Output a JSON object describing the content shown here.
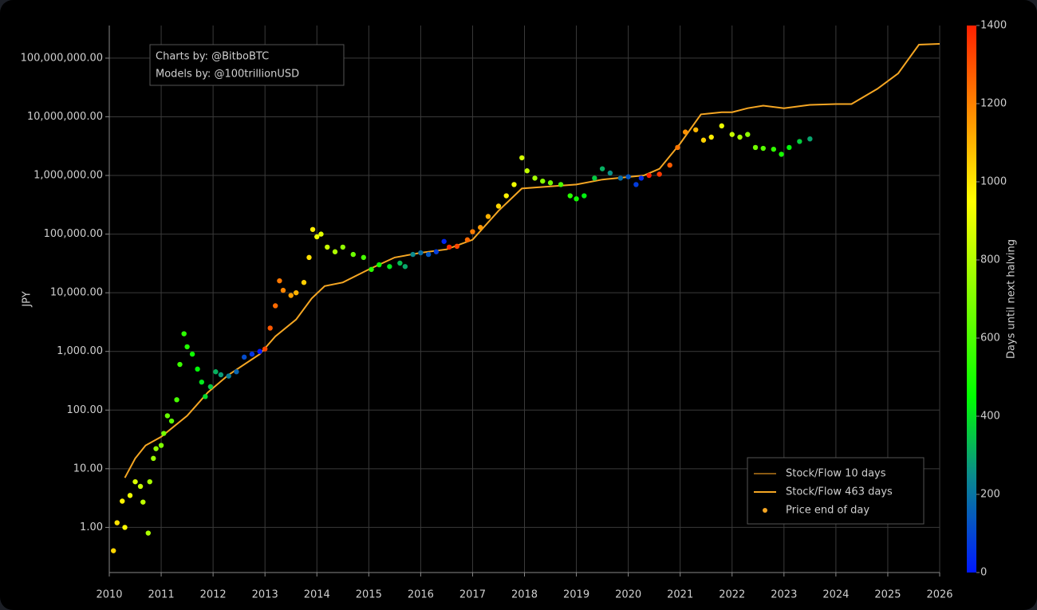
{
  "chart_data": {
    "type": "scatter",
    "y_label": "JPY",
    "annotations": [
      "Charts by: @BitboBTC",
      "Models by: @100trillionUSD"
    ],
    "log_y": true,
    "grid": true,
    "legend_position": "lower right",
    "xlim": [
      2010,
      2026
    ],
    "xticks": [
      2010,
      2011,
      2012,
      2013,
      2014,
      2015,
      2016,
      2017,
      2018,
      2019,
      2020,
      2021,
      2022,
      2023,
      2024,
      2025,
      2026
    ],
    "ylim": [
      0.17,
      360000000
    ],
    "yticks": [
      {
        "value": 1,
        "label": "1.00"
      },
      {
        "value": 10,
        "label": "10.00"
      },
      {
        "value": 100,
        "label": "100.00"
      },
      {
        "value": 1000,
        "label": "1,000.00"
      },
      {
        "value": 10000,
        "label": "10,000.00"
      },
      {
        "value": 100000,
        "label": "100,000.00"
      },
      {
        "value": 1000000,
        "label": "1,000,000.00"
      },
      {
        "value": 10000000,
        "label": "10,000,000.00"
      },
      {
        "value": 100000000,
        "label": "100,000,000.00"
      }
    ],
    "colorbar": {
      "label": "Days until next halving",
      "lim": [
        0,
        1400
      ],
      "ticks": [
        0,
        200,
        400,
        600,
        800,
        1000,
        1200,
        1400
      ],
      "colorscale": [
        [
          0,
          "#0018ff"
        ],
        [
          250,
          "#0a8c8c"
        ],
        [
          450,
          "#00ff00"
        ],
        [
          950,
          "#ffff00"
        ],
        [
          1150,
          "#ff9a00"
        ],
        [
          1400,
          "#ff2000"
        ]
      ]
    },
    "series": [
      {
        "name": "Stock/Flow 10 days",
        "type": "line",
        "color": "#8a5a12"
      },
      {
        "name": "Stock/Flow 463 days",
        "type": "line",
        "color": "#f5a623",
        "x": [
          2010.3,
          2010.5,
          2010.7,
          2011.0,
          2011.5,
          2011.9,
          2012.3,
          2012.9,
          2013.2,
          2013.6,
          2013.9,
          2014.15,
          2014.5,
          2015.0,
          2015.5,
          2016.0,
          2016.5,
          2017.0,
          2017.5,
          2017.95,
          2018.5,
          2019.0,
          2019.5,
          2020.3,
          2020.6,
          2021.0,
          2021.4,
          2021.8,
          2022.0,
          2022.3,
          2022.6,
          2023.0,
          2023.5,
          2024.0,
          2024.3,
          2024.8,
          2025.2,
          2025.6,
          2026.0
        ],
        "values": [
          7,
          15,
          25,
          35,
          80,
          200,
          400,
          900,
          1800,
          3500,
          8000,
          13000,
          15000,
          25000,
          40000,
          48000,
          55000,
          80000,
          250000,
          600000,
          650000,
          700000,
          850000,
          1000000,
          1300000,
          3500000,
          11000000,
          12000000,
          12000000,
          14000000,
          15500000,
          14000000,
          16000000,
          16500000,
          16500000,
          30000000,
          55000000,
          170000000,
          175000000
        ]
      },
      {
        "name": "Price end of day",
        "type": "scatter",
        "color": "#f5a623",
        "x": [
          2010.08,
          2010.15,
          2010.25,
          2010.3,
          2010.4,
          2010.5,
          2010.6,
          2010.65,
          2010.75,
          2010.78,
          2010.85,
          2010.9,
          2011.0,
          2011.05,
          2011.12,
          2011.2,
          2011.3,
          2011.36,
          2011.44,
          2011.5,
          2011.6,
          2011.7,
          2011.78,
          2011.85,
          2011.95,
          2012.05,
          2012.15,
          2012.3,
          2012.45,
          2012.6,
          2012.75,
          2012.9,
          2013.0,
          2013.1,
          2013.2,
          2013.28,
          2013.35,
          2013.5,
          2013.6,
          2013.75,
          2013.85,
          2013.92,
          2014.0,
          2014.08,
          2014.2,
          2014.35,
          2014.5,
          2014.7,
          2014.9,
          2015.05,
          2015.2,
          2015.4,
          2015.6,
          2015.7,
          2015.85,
          2016.0,
          2016.15,
          2016.3,
          2016.45,
          2016.55,
          2016.7,
          2016.9,
          2017.0,
          2017.15,
          2017.3,
          2017.5,
          2017.65,
          2017.8,
          2017.95,
          2018.05,
          2018.2,
          2018.35,
          2018.5,
          2018.7,
          2018.88,
          2019.0,
          2019.15,
          2019.35,
          2019.5,
          2019.65,
          2019.85,
          2020.0,
          2020.15,
          2020.25,
          2020.4,
          2020.6,
          2020.8,
          2020.95,
          2021.1,
          2021.3,
          2021.45,
          2021.6,
          2021.8,
          2022.0,
          2022.15,
          2022.3,
          2022.45,
          2022.6,
          2022.8,
          2022.95,
          2023.1,
          2023.3,
          2023.5
        ],
        "values": [
          0.4,
          1.2,
          2.8,
          1.0,
          3.5,
          6,
          5,
          2.7,
          0.8,
          6,
          15,
          22,
          25,
          40,
          80,
          65,
          150,
          600,
          2000,
          1200,
          900,
          500,
          300,
          170,
          250,
          450,
          400,
          380,
          450,
          800,
          900,
          1000,
          1100,
          2500,
          6000,
          16000,
          11000,
          9000,
          10000,
          15000,
          40000,
          120000,
          90000,
          100000,
          60000,
          50000,
          60000,
          45000,
          40000,
          25000,
          30000,
          28000,
          32000,
          28000,
          45000,
          48000,
          45000,
          50000,
          75000,
          60000,
          62000,
          80000,
          110000,
          130000,
          200000,
          300000,
          450000,
          700000,
          2000000,
          1200000,
          900000,
          800000,
          750000,
          700000,
          450000,
          400000,
          450000,
          900000,
          1300000,
          1100000,
          900000,
          950000,
          700000,
          900000,
          1000000,
          1050000,
          1500000,
          3000000,
          5500000,
          6000000,
          4000000,
          4500000,
          7000000,
          5000000,
          4500000,
          5000000,
          3000000,
          2900000,
          2800000,
          2300000,
          3000000,
          3800000,
          4200000
        ],
        "days": [
          1033,
          1007,
          971,
          953,
          916,
          880,
          843,
          825,
          788,
          777,
          752,
          734,
          697,
          679,
          653,
          624,
          588,
          566,
          537,
          515,
          478,
          442,
          412,
          387,
          350,
          314,
          277,
          223,
          168,
          113,
          58,
          4,
          1321,
          1285,
          1248,
          1219,
          1194,
          1139,
          1102,
          1048,
          1011,
          986,
          920,
          891,
          847,
          792,
          737,
          664,
          591,
          537,
          482,
          409,
          336,
          299,
          245,
          190,
          135,
          80,
          26,
          1376,
          1321,
          1248,
          1212,
          1157,
          1102,
          1029,
          975,
          920,
          865,
          828,
          774,
          719,
          664,
          591,
          526,
          482,
          427,
          357,
          310,
          259,
          186,
          131,
          77,
          40,
          1424,
          1351,
          1278,
          1223,
          1168,
          1095,
          1040,
          986,
          913,
          839,
          785,
          730,
          675,
          621,
          547,
          493,
          438,
          365,
          292
        ]
      }
    ]
  }
}
